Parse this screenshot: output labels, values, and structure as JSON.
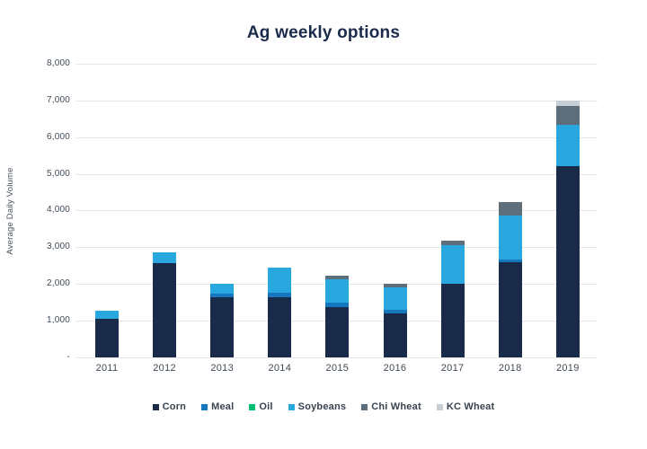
{
  "title": "Ag weekly options",
  "y_axis": {
    "label": "Average Daily Volume",
    "tick_labels": [
      "-",
      "1,000",
      "2,000",
      "3,000",
      "4,000",
      "5,000",
      "6,000",
      "7,000",
      "8,000"
    ]
  },
  "chart_data": {
    "type": "bar",
    "stacked": true,
    "title": "Ag weekly options",
    "ylabel": "Average Daily Volume",
    "ylim": [
      0,
      8000
    ],
    "ytick_step": 1000,
    "grid": true,
    "legend_position": "bottom",
    "categories": [
      "2011",
      "2012",
      "2013",
      "2014",
      "2015",
      "2016",
      "2017",
      "2018",
      "2019"
    ],
    "series": [
      {
        "name": "Corn",
        "color": "#1a2b4a",
        "values": [
          1050,
          2575,
          1650,
          1650,
          1375,
          1200,
          2000,
          2600,
          5200
        ]
      },
      {
        "name": "Meal",
        "color": "#1677bf",
        "values": [
          0,
          0,
          75,
          100,
          125,
          100,
          0,
          75,
          0
        ]
      },
      {
        "name": "Oil",
        "color": "#00bd70",
        "values": [
          0,
          0,
          0,
          0,
          0,
          0,
          0,
          0,
          0
        ]
      },
      {
        "name": "Soybeans",
        "color": "#29a8e0",
        "values": [
          225,
          275,
          275,
          700,
          625,
          600,
          1050,
          1200,
          1125
        ]
      },
      {
        "name": "Chi Wheat",
        "color": "#5f6e7b",
        "values": [
          0,
          0,
          0,
          0,
          100,
          100,
          125,
          350,
          525
        ]
      },
      {
        "name": "KC Wheat",
        "color": "#c7ced4",
        "values": [
          0,
          0,
          0,
          0,
          0,
          0,
          0,
          0,
          150
        ]
      }
    ],
    "totals": [
      1275,
      2850,
      2000,
      2450,
      2225,
      2000,
      3175,
      4225,
      7000
    ]
  }
}
